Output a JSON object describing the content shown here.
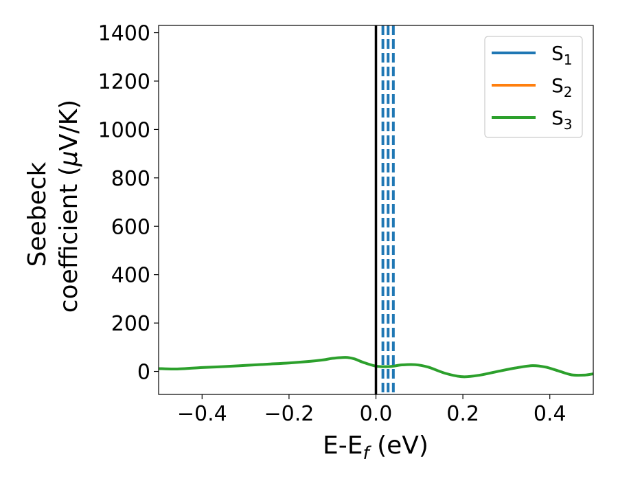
{
  "chart_data": {
    "type": "line",
    "xlabel": {
      "main": "E-E",
      "sub": "f",
      "suffix": " (eV)"
    },
    "ylabel": {
      "line1": "Seebeck",
      "line2": "coefficient  (",
      "mu": "μ",
      "line2_suffix": "V/K)"
    },
    "xlim": [
      -0.5,
      0.5
    ],
    "ylim": [
      -95,
      1430
    ],
    "xticks": [
      -0.4,
      -0.2,
      0.0,
      0.2,
      0.4
    ],
    "xtick_labels": [
      "−0.4",
      "−0.2",
      "0.0",
      "0.2",
      "0.4"
    ],
    "yticks": [
      0,
      200,
      400,
      600,
      800,
      1000,
      1200,
      1400
    ],
    "ytick_labels": [
      "0",
      "200",
      "400",
      "600",
      "800",
      "1000",
      "1200",
      "1400"
    ],
    "legend_position": "top-right",
    "series": [
      {
        "name": "S",
        "sub": "1",
        "color": "#1f77b4",
        "x": [],
        "y": []
      },
      {
        "name": "S",
        "sub": "2",
        "color": "#ff7f0e",
        "x": [],
        "y": []
      },
      {
        "name": "S",
        "sub": "3",
        "color": "#2ca02c",
        "x": [
          -0.5,
          -0.46,
          -0.4,
          -0.35,
          -0.3,
          -0.25,
          -0.2,
          -0.15,
          -0.12,
          -0.1,
          -0.07,
          -0.05,
          -0.03,
          0.0,
          0.03,
          0.06,
          0.09,
          0.12,
          0.16,
          0.2,
          0.24,
          0.28,
          0.32,
          0.36,
          0.39,
          0.42,
          0.45,
          0.48,
          0.5
        ],
        "y": [
          12,
          10,
          16,
          20,
          25,
          30,
          35,
          42,
          48,
          54,
          58,
          52,
          38,
          22,
          20,
          27,
          28,
          18,
          -8,
          -22,
          -15,
          0,
          14,
          24,
          18,
          2,
          -14,
          -15,
          -10
        ]
      }
    ],
    "vertical_lines": [
      {
        "x": 0.0,
        "color": "#000000",
        "style": "solid"
      },
      {
        "x": 0.016,
        "color": "#1f77b4",
        "style": "dashed"
      },
      {
        "x": 0.028,
        "color": "#1f77b4",
        "style": "dashed"
      },
      {
        "x": 0.04,
        "color": "#1f77b4",
        "style": "dashed"
      }
    ]
  }
}
